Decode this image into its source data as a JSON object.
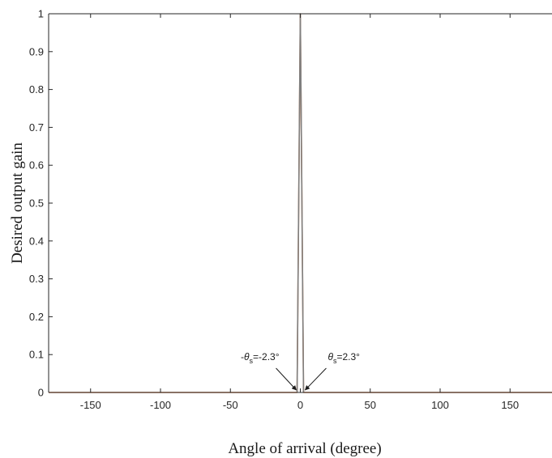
{
  "chart_data": {
    "type": "line",
    "xlabel": "Angle of arrival (degree)",
    "ylabel": "Desired output gain",
    "xlim": [
      -180,
      180
    ],
    "ylim": [
      0,
      1
    ],
    "x_ticks": [
      -150,
      -100,
      -50,
      0,
      50,
      100,
      150
    ],
    "y_ticks": [
      0,
      0.1,
      0.2,
      0.3,
      0.4,
      0.5,
      0.6,
      0.7,
      0.8,
      0.9,
      1
    ],
    "grid": false,
    "series": [
      {
        "color": "#d9804a",
        "x": [
          -180,
          -2.3,
          0,
          2.3,
          180
        ],
        "y": [
          0,
          0,
          1,
          0,
          0
        ]
      },
      {
        "color": "#7f7f7f",
        "x": [
          -2.3,
          0,
          2.3
        ],
        "y": [
          0,
          1,
          0
        ]
      }
    ],
    "annotations": [
      {
        "prefix": "-",
        "symbol": "θ",
        "subscript": "s",
        "value_text": "=-2.3°",
        "target_x": -2.3,
        "target_y": 0
      },
      {
        "prefix": "",
        "symbol": "θ",
        "subscript": "s",
        "value_text": "=2.3°",
        "target_x": 2.3,
        "target_y": 0
      }
    ],
    "colors": {
      "axis": "#262626",
      "arrow": "#1a1a1a"
    }
  }
}
